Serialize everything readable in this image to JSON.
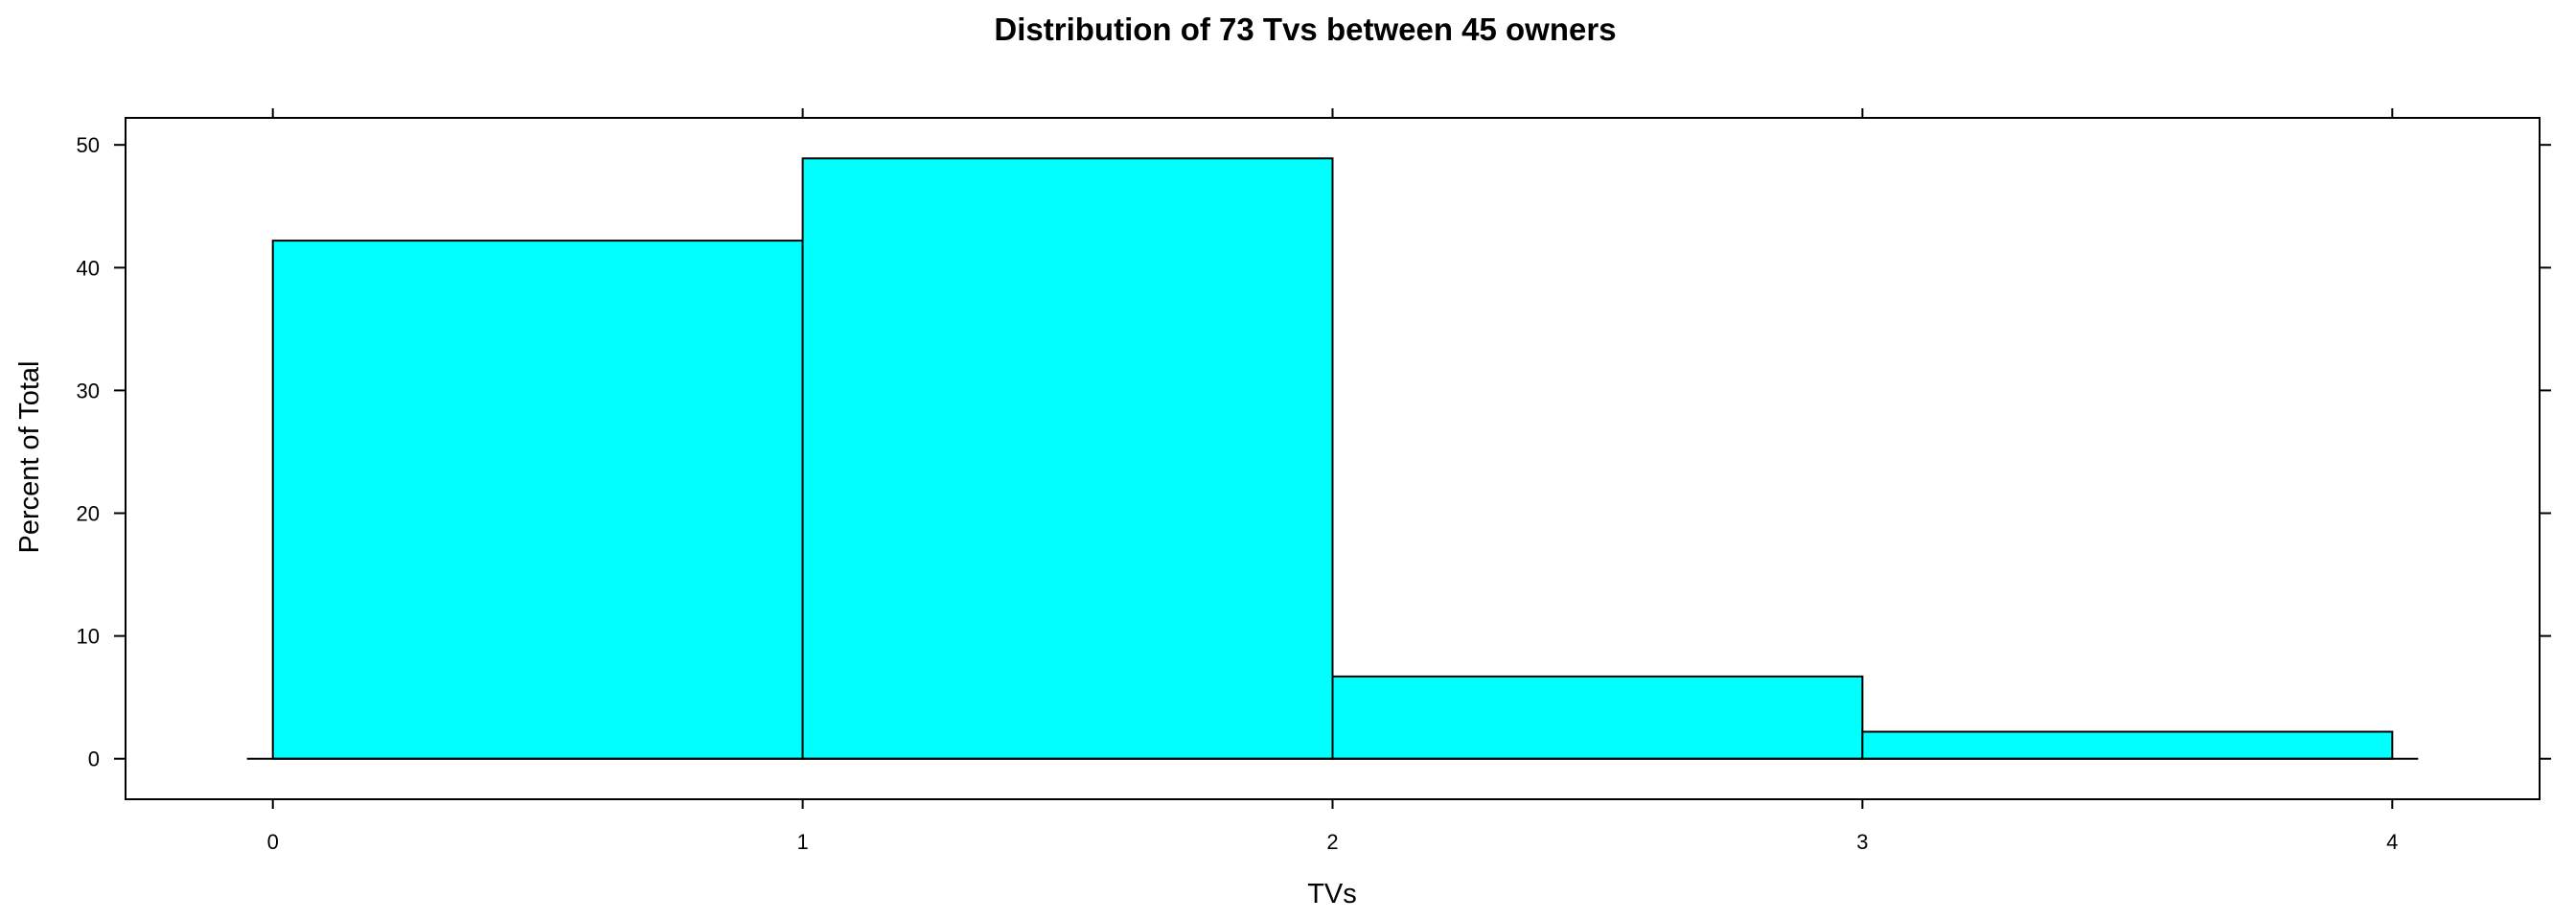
{
  "chart_data": {
    "type": "bar",
    "title": "Distribution of 73 Tvs between 45 owners",
    "xlabel": "TVs",
    "ylabel": "Percent of Total",
    "bins": [
      {
        "x0": 0,
        "x1": 1,
        "value": 42.2
      },
      {
        "x0": 1,
        "x1": 2,
        "value": 48.9
      },
      {
        "x0": 2,
        "x1": 3,
        "value": 6.7
      },
      {
        "x0": 3,
        "x1": 4,
        "value": 2.2
      }
    ],
    "xlim": [
      -0.278,
      4.278
    ],
    "ylim": [
      -3.3,
      52.2
    ],
    "x_ticks": [
      "0",
      "1",
      "2",
      "3",
      "4"
    ],
    "y_ticks": [
      "0",
      "10",
      "20",
      "30",
      "40",
      "50"
    ],
    "grid": false,
    "colors": {
      "bar_fill": "#00ffff",
      "bar_stroke": "#000000"
    }
  }
}
